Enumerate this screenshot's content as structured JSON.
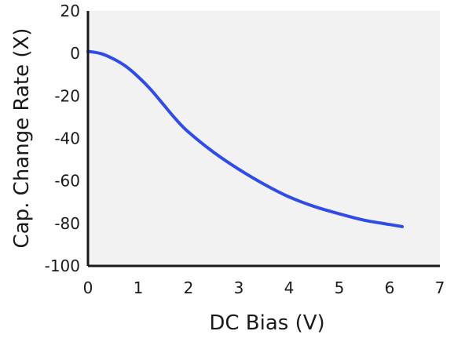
{
  "chart_data": {
    "type": "line",
    "title": "",
    "xlabel": "DC Bias (V)",
    "ylabel": "Cap. Change Rate (X)",
    "xlim": [
      0,
      7
    ],
    "ylim": [
      -100,
      20
    ],
    "x_ticks": [
      "0",
      "1",
      "2",
      "3",
      "4",
      "5",
      "6",
      "7"
    ],
    "y_ticks": [
      "20",
      "0",
      "-20",
      "-40",
      "-60",
      "-80",
      "-100"
    ],
    "grid": false,
    "legend": "none",
    "background_color": "#f2f2f2",
    "series": [
      {
        "color": "#2f4be8",
        "x": [
          0,
          0.25,
          0.5,
          0.75,
          1.0,
          1.25,
          1.5,
          1.75,
          2.0,
          2.5,
          3.0,
          3.5,
          4.0,
          4.5,
          5.0,
          5.5,
          6.0,
          6.25
        ],
        "y": [
          1,
          0,
          -2.5,
          -6,
          -11,
          -17,
          -24,
          -31,
          -37,
          -46.5,
          -54.5,
          -61.5,
          -67.5,
          -72,
          -75.5,
          -78.5,
          -80.5,
          -81.5
        ]
      }
    ]
  }
}
